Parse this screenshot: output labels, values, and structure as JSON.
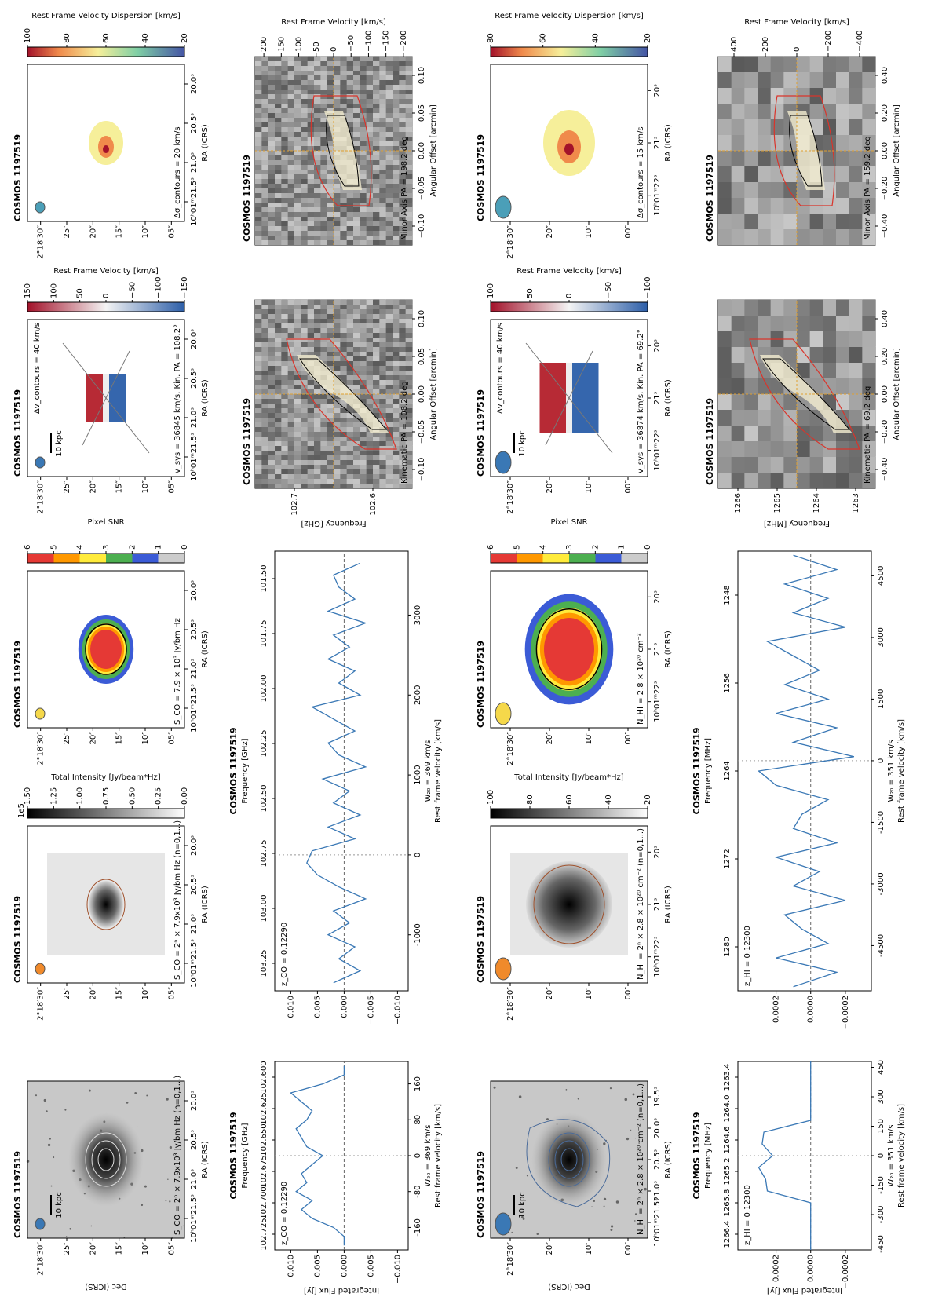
{
  "maps": [
    {
      "title": "COSMOS 1197519",
      "scalebar": "10 kpc",
      "annotation": "S_CO = 2ⁿ × 7.9x10³ Jy/bm Hz (n=0,1...)",
      "xlabel": "RA (ICRS)",
      "ylabel": "Dec (ICRS)",
      "xticks": [
        "10ʰ01ᵐ21.5ˢ",
        "21.0ˢ",
        "20.5ˢ",
        "20.0ˢ"
      ],
      "yticks": [
        "2°18′30″",
        "25″",
        "20″",
        "15″",
        "10″",
        "05″"
      ]
    },
    {
      "title": "COSMOS 1197519",
      "annotation": "S_CO = 2ⁿ × 7.9x10³ Jy/bm Hz (n=0,1...)",
      "xlabel": "RA (ICRS)",
      "xticks": [
        "10ʰ01ᵐ21.5ˢ",
        "21.0ˢ",
        "20.5ˢ",
        "20.0ˢ"
      ],
      "yticks": [
        "2°18′30″",
        "25″",
        "20″",
        "15″",
        "10″",
        "05″"
      ],
      "colorbar": {
        "label": "Total Intensity [Jy/beam*Hz]",
        "offset": "1e5",
        "ticks": [
          "0.00",
          "0.25",
          "0.50",
          "0.75",
          "1.00",
          "1.25",
          "1.50"
        ]
      }
    },
    {
      "title": "COSMOS 1197519",
      "annotation": "S_CO = 7.9 × 10³ Jy/bm Hz",
      "xlabel": "RA (ICRS)",
      "xticks": [
        "10ʰ01ᵐ21.5ˢ",
        "21.0ˢ",
        "20.5ˢ",
        "20.0ˢ"
      ],
      "yticks": [
        "2°18′30″",
        "25″",
        "20″",
        "15″",
        "10″",
        "05″"
      ],
      "colorbar": {
        "label": "Pixel SNR",
        "ticks": [
          "0",
          "1",
          "2",
          "3",
          "4",
          "5",
          "6"
        ]
      }
    },
    {
      "title": "COSMOS 1197519",
      "scalebar": "10 kpc",
      "annotation": "v_sys = 36845 km/s, Kin. PA = 108.2°",
      "annotation2": "Δv_contours = 40 km/s",
      "xlabel": "RA (ICRS)",
      "xticks": [
        "10ʰ01ᵐ21.5ˢ",
        "21.0ˢ",
        "20.5ˢ",
        "20.0ˢ"
      ],
      "yticks": [
        "2°18′30″",
        "25″",
        "20″",
        "15″",
        "10″",
        "05″"
      ],
      "colorbar": {
        "label": "Rest Frame Velocity [km/s]",
        "ticks": [
          "−150",
          "−100",
          "−50",
          "0",
          "50",
          "100",
          "150"
        ]
      }
    },
    {
      "title": "COSMOS 1197519",
      "annotation": "Δσ_contours = 20 km/s",
      "xlabel": "RA (ICRS)",
      "xticks": [
        "10ʰ01ᵐ21.5ˢ",
        "21.0ˢ",
        "20.5ˢ",
        "20.0ˢ"
      ],
      "yticks": [
        "2°18′30″",
        "25″",
        "20″",
        "15″",
        "10″",
        "05″"
      ],
      "colorbar": {
        "label": "Rest Frame Velocity Dispersion [km/s]",
        "ticks": [
          "20",
          "40",
          "60",
          "80",
          "100"
        ]
      }
    },
    {
      "title": "COSMOS 1197519",
      "scalebar": "10 kpc",
      "annotation": "N_HI = 2ⁿ × 2.8 × 10²⁰ cm⁻² (n=0,1...)",
      "xlabel": "RA (ICRS)",
      "ylabel": "Dec (ICRS)",
      "xticks": [
        "10ʰ01ᵐ21.5ˢ",
        "21.0ˢ",
        "20.5ˢ",
        "20.0ˢ",
        "19.5ˢ"
      ],
      "yticks": [
        "2°18′30″",
        "20″",
        "10″",
        "00″"
      ]
    },
    {
      "title": "COSMOS 1197519",
      "annotation": "N_HI = 2ⁿ × 2.8 × 10²⁰ cm⁻² (n=0,1...)",
      "xlabel": "RA (ICRS)",
      "xticks": [
        "10ʰ01ᵐ22ˢ",
        "21ˢ",
        "20ˢ"
      ],
      "yticks": [
        "2°18′30″",
        "20″",
        "10″",
        "00″"
      ],
      "colorbar": {
        "label": "Total Intensity [Jy/beam*Hz]",
        "ticks": [
          "20",
          "40",
          "60",
          "80",
          "100"
        ]
      }
    },
    {
      "title": "COSMOS 1197519",
      "annotation": "N_HI = 2.8 × 10²⁰ cm⁻²",
      "xlabel": "RA (ICRS)",
      "xticks": [
        "10ʰ01ᵐ22ˢ",
        "21ˢ",
        "20ˢ"
      ],
      "yticks": [
        "2°18′30″",
        "20″",
        "10″",
        "00″"
      ],
      "colorbar": {
        "label": "Pixel SNR",
        "ticks": [
          "0",
          "1",
          "2",
          "3",
          "4",
          "5",
          "6"
        ]
      }
    },
    {
      "title": "COSMOS 1197519",
      "scalebar": "10 kpc",
      "annotation": "v_sys = 36874 km/s, Kin. PA = 69.2°",
      "annotation2": "Δv_contours = 40 km/s",
      "xlabel": "RA (ICRS)",
      "xticks": [
        "10ʰ01ᵐ22ˢ",
        "21ˢ",
        "20ˢ"
      ],
      "yticks": [
        "2°18′30″",
        "20″",
        "10″",
        "00″"
      ],
      "colorbar": {
        "label": "Rest Frame Velocity [km/s]",
        "ticks": [
          "−100",
          "−50",
          "0",
          "50",
          "100"
        ]
      }
    },
    {
      "title": "COSMOS 1197519",
      "annotation": "Δσ_contours = 15 km/s",
      "xlabel": "RA (ICRS)",
      "xticks": [
        "10ʰ01ᵐ22ˢ",
        "21ˢ",
        "20ˢ"
      ],
      "yticks": [
        "2°18′30″",
        "20″",
        "10″",
        "00″"
      ],
      "colorbar": {
        "label": "Rest Frame Velocity Dispersion [km/s]",
        "ticks": [
          "20",
          "40",
          "60",
          "80"
        ]
      }
    }
  ],
  "spectra": [
    {
      "title": "COSMOS 1197519",
      "top_label": "Frequency [GHz]",
      "top_ticks": [
        "102.725",
        "102.700",
        "102.675",
        "102.650",
        "102.625",
        "102.600"
      ],
      "annotation": "z_CO = 0.12290",
      "width_label": "W₂₀ = 369 km/s",
      "xlabel": "Rest frame velocity [km/s]",
      "ylabel": "Integrated Flux [Jy]",
      "color": "#3a78b5",
      "x": [
        -200,
        -180,
        -160,
        -140,
        -120,
        -100,
        -80,
        -60,
        -40,
        -20,
        0,
        20,
        40,
        60,
        80,
        100,
        120,
        140,
        160,
        180,
        200
      ],
      "values": [
        0,
        0,
        0.002,
        0.006,
        0.008,
        0.006,
        0.009,
        0.007,
        0.008,
        0.006,
        0.004,
        0.007,
        0.008,
        0.009,
        0.007,
        0.006,
        0.008,
        0.01,
        0.004,
        0,
        0
      ],
      "xlim": [
        -210,
        210
      ],
      "ylim": [
        -0.012,
        0.013
      ],
      "xticks": [
        -160,
        -80,
        0,
        80,
        160
      ],
      "yticks": [
        {
          "value": -0.01,
          "label": "−0.010"
        },
        {
          "value": -0.005,
          "label": "−0.005"
        },
        {
          "value": 0,
          "label": "0.000"
        },
        {
          "value": 0.005,
          "label": "0.005"
        },
        {
          "value": 0.01,
          "label": "0.010"
        }
      ]
    },
    {
      "title": "COSMOS 1197519",
      "top_label": "Frequency [GHz]",
      "top_ticks": [
        "103.25",
        "103.00",
        "102.75",
        "102.50",
        "102.25",
        "102.00",
        "101.75",
        "101.50"
      ],
      "annotation": "z_CO = 0.12290",
      "width_label": "W₂₀ = 369 km/s",
      "xlabel": "Rest frame velocity [km/s]",
      "color": "#3a78b5",
      "x": [
        -1600,
        -1450,
        -1300,
        -1150,
        -1000,
        -850,
        -700,
        -550,
        -400,
        -250,
        -100,
        50,
        200,
        350,
        500,
        650,
        800,
        950,
        1100,
        1250,
        1400,
        1550,
        1700,
        1850,
        2000,
        2150,
        2300,
        2450,
        2600,
        2750,
        2900,
        3050,
        3200,
        3350,
        3500,
        3650
      ],
      "values": [
        0.002,
        -0.003,
        0.001,
        -0.002,
        0.003,
        -0.001,
        0.002,
        -0.004,
        0.001,
        0.005,
        0.007,
        0.006,
        -0.002,
        0.003,
        -0.003,
        0.002,
        -0.001,
        0.004,
        -0.004,
        0.001,
        0.003,
        -0.002,
        0.002,
        0.006,
        -0.003,
        0.001,
        -0.002,
        0.003,
        -0.001,
        0.002,
        -0.004,
        0.003,
        -0.002,
        0.001,
        0.002,
        -0.003
      ],
      "xlim": [
        -1700,
        3800
      ],
      "ylim": [
        -0.012,
        0.013
      ],
      "xticks": [
        -1000,
        0,
        1000,
        2000,
        3000
      ],
      "yticks": [
        {
          "value": -0.01,
          "label": "−0.010"
        },
        {
          "value": -0.005,
          "label": "−0.005"
        },
        {
          "value": 0,
          "label": "0.000"
        },
        {
          "value": 0.005,
          "label": "0.005"
        },
        {
          "value": 0.01,
          "label": "0.010"
        }
      ]
    },
    {
      "title": "COSMOS 1197519",
      "top_label": "Frequency [MHz]",
      "top_ticks": [
        "1266.4",
        "1265.8",
        "1265.2",
        "1264.6",
        "1264.0",
        "1263.4"
      ],
      "annotation": "z_HI = 0.12300",
      "width_label": "W₂₀ = 351 km/s",
      "xlabel": "Rest frame velocity [km/s]",
      "ylabel": "Integrated Flux [Jy]",
      "color": "#3a78b5",
      "x": [
        -480,
        -420,
        -360,
        -300,
        -240,
        -180,
        -120,
        -60,
        0,
        60,
        120,
        180,
        240,
        300,
        360,
        420,
        480
      ],
      "values": [
        0,
        0,
        0,
        0,
        0,
        0.00025,
        0.00026,
        0.0003,
        0.00022,
        0.00028,
        0.00027,
        0,
        0,
        0,
        0,
        0,
        0
      ],
      "xlim": [
        -480,
        480
      ],
      "ylim": [
        -0.00035,
        0.00042
      ],
      "xticks": [
        -450,
        -300,
        -150,
        0,
        150,
        300,
        450
      ],
      "yticks": [
        {
          "value": -0.0002,
          "label": "−0.0002"
        },
        {
          "value": 0,
          "label": "0.0000"
        },
        {
          "value": 0.0002,
          "label": "0.0002"
        }
      ]
    },
    {
      "title": "COSMOS 1197519",
      "top_label": "Frequency [MHz]",
      "top_ticks": [
        "1280",
        "1272",
        "1264",
        "1256",
        "1248"
      ],
      "annotation": "z_HI = 0.12300",
      "width_label": "W₂₀ = 351 km/s",
      "xlabel": "Rest frame velocity [km/s]",
      "color": "#3a78b5",
      "x": [
        -5500,
        -5150,
        -4800,
        -4450,
        -4100,
        -3750,
        -3400,
        -3050,
        -2700,
        -2350,
        -2000,
        -1650,
        -1300,
        -950,
        -600,
        -250,
        100,
        450,
        800,
        1150,
        1500,
        1850,
        2200,
        2550,
        2900,
        3250,
        3600,
        3950,
        4300,
        4650,
        5000
      ],
      "values": [
        0.0001,
        -0.00015,
        0.0002,
        -0.0001,
        5e-05,
        0.00015,
        -0.0002,
        0.0001,
        -5e-05,
        0.0002,
        -0.00015,
        0.0001,
        5e-05,
        -0.0001,
        0.0002,
        0.0003,
        -0.00025,
        0.0001,
        -0.00015,
        0.0002,
        -0.0001,
        0.00015,
        -5e-05,
        0.0001,
        0.00025,
        -0.0002,
        0.0001,
        -0.0001,
        0.00015,
        -0.00015,
        0.0001
      ],
      "xlim": [
        -5600,
        5100
      ],
      "ylim": [
        -0.00035,
        0.00042
      ],
      "xticks": [
        -4500,
        -3000,
        -1500,
        0,
        1500,
        3000,
        4500
      ],
      "yticks": [
        {
          "value": -0.0002,
          "label": "−0.0002"
        },
        {
          "value": 0,
          "label": "0.0000"
        },
        {
          "value": 0.0002,
          "label": "0.0002"
        }
      ]
    }
  ],
  "pv": [
    {
      "title": "COSMOS 1197519",
      "annotation": "Kinematic PA = 108.2 deg",
      "xlabel": "Angular Offset [arcmin]",
      "xticks": [
        "−0.10",
        "−0.05",
        "0.00",
        "0.05",
        "0.10"
      ],
      "ylabel": "Frequency [GHz]",
      "yticks": [
        "102.7",
        "102.6"
      ]
    },
    {
      "title": "COSMOS 1197519",
      "annotation": "Minor Axis PA = 198.2 deg",
      "xlabel": "Angular Offset [arcmin]",
      "xticks": [
        "−0.10",
        "−0.05",
        "0.00",
        "0.05",
        "0.10"
      ],
      "y2label": "Rest Frame Velocity [km/s]",
      "y2ticks": [
        "−200",
        "−150",
        "−100",
        "−50",
        "0",
        "50",
        "100",
        "150",
        "200"
      ]
    },
    {
      "title": "COSMOS 1197519",
      "annotation": "Kinematic PA = 69.2 deg",
      "xlabel": "Angular Offset [arcmin]",
      "xticks": [
        "−0.40",
        "−0.20",
        "0.00",
        "0.20",
        "0.40"
      ],
      "ylabel": "Frequency [MHz]",
      "yticks": [
        "1266",
        "1265",
        "1264",
        "1263"
      ]
    },
    {
      "title": "COSMOS 1197519",
      "annotation": "Minor Axis PA = 159.2 deg",
      "xlabel": "Angular Offset [arcmin]",
      "xticks": [
        "−0.40",
        "−0.20",
        "0.00",
        "0.20",
        "0.40"
      ],
      "y2label": "Rest Frame Velocity [km/s]",
      "y2ticks": [
        "−400",
        "−200",
        "0",
        "200",
        "400"
      ]
    }
  ]
}
